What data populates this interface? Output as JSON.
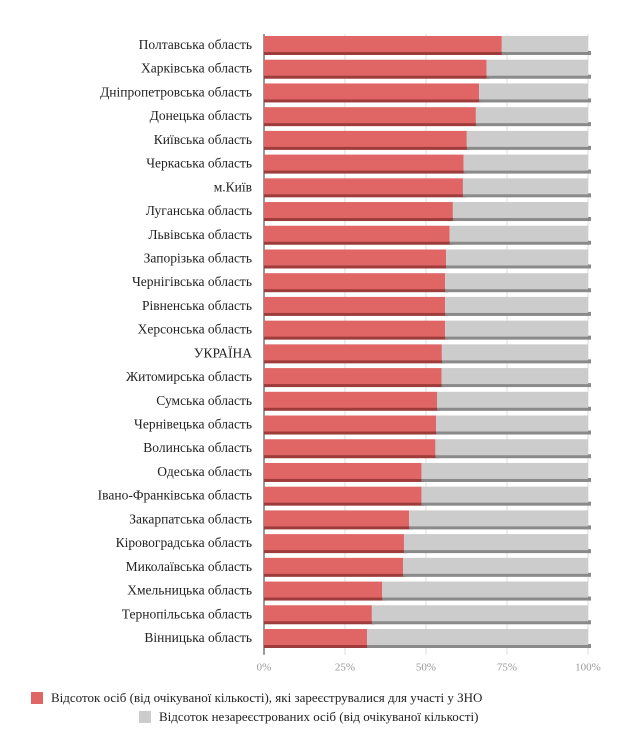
{
  "chart_data": {
    "type": "bar",
    "orientation": "horizontal",
    "stacked": true,
    "categories": [
      "Полтавська область",
      "Харківська область",
      "Дніпропетровська область",
      "Донецька область",
      "Київська область",
      "Черкаська область",
      "м.Київ",
      "Луганська область",
      "Львівська область",
      "Запорізька область",
      "Чернігівська область",
      "Рівненська область",
      "Херсонська область",
      "УКРАЇНА",
      "Житомирська область",
      "Сумська область",
      "Чернівецька область",
      "Волинська область",
      "Одеська область",
      "Івано-Франківська область",
      "Закарпатська область",
      "Кіровоградська область",
      "Миколаївська область",
      "Хмельницька область",
      "Тернопільська область",
      "Вінницька область"
    ],
    "series": [
      {
        "name": "Відсоток осіб (від очікуваної кількості), які зареєструвалися для участі у ЗНО",
        "color": "#e06666",
        "values": [
          73.4,
          68.7,
          66.4,
          65.4,
          62.6,
          61.6,
          61.4,
          58.3,
          57.3,
          56.2,
          55.9,
          55.9,
          55.9,
          54.9,
          54.8,
          53.4,
          53.1,
          52.9,
          48.6,
          48.6,
          44.8,
          43.2,
          42.9,
          36.5,
          33.3,
          31.8
        ]
      },
      {
        "name": "Відсоток незареєстрованих осіб (від очікуваної кількості)",
        "color": "#cccccc",
        "values": [
          26.6,
          31.3,
          33.6,
          34.6,
          37.4,
          38.4,
          38.6,
          41.7,
          42.7,
          43.8,
          44.1,
          44.1,
          44.1,
          45.1,
          45.2,
          46.6,
          46.9,
          47.1,
          51.4,
          51.4,
          55.2,
          56.8,
          57.1,
          63.5,
          66.7,
          68.2
        ]
      }
    ],
    "xticks": [
      "0%",
      "25%",
      "50%",
      "75%",
      "100%"
    ],
    "xlim": [
      0,
      100
    ],
    "grid": true,
    "legend_position": "bottom"
  }
}
